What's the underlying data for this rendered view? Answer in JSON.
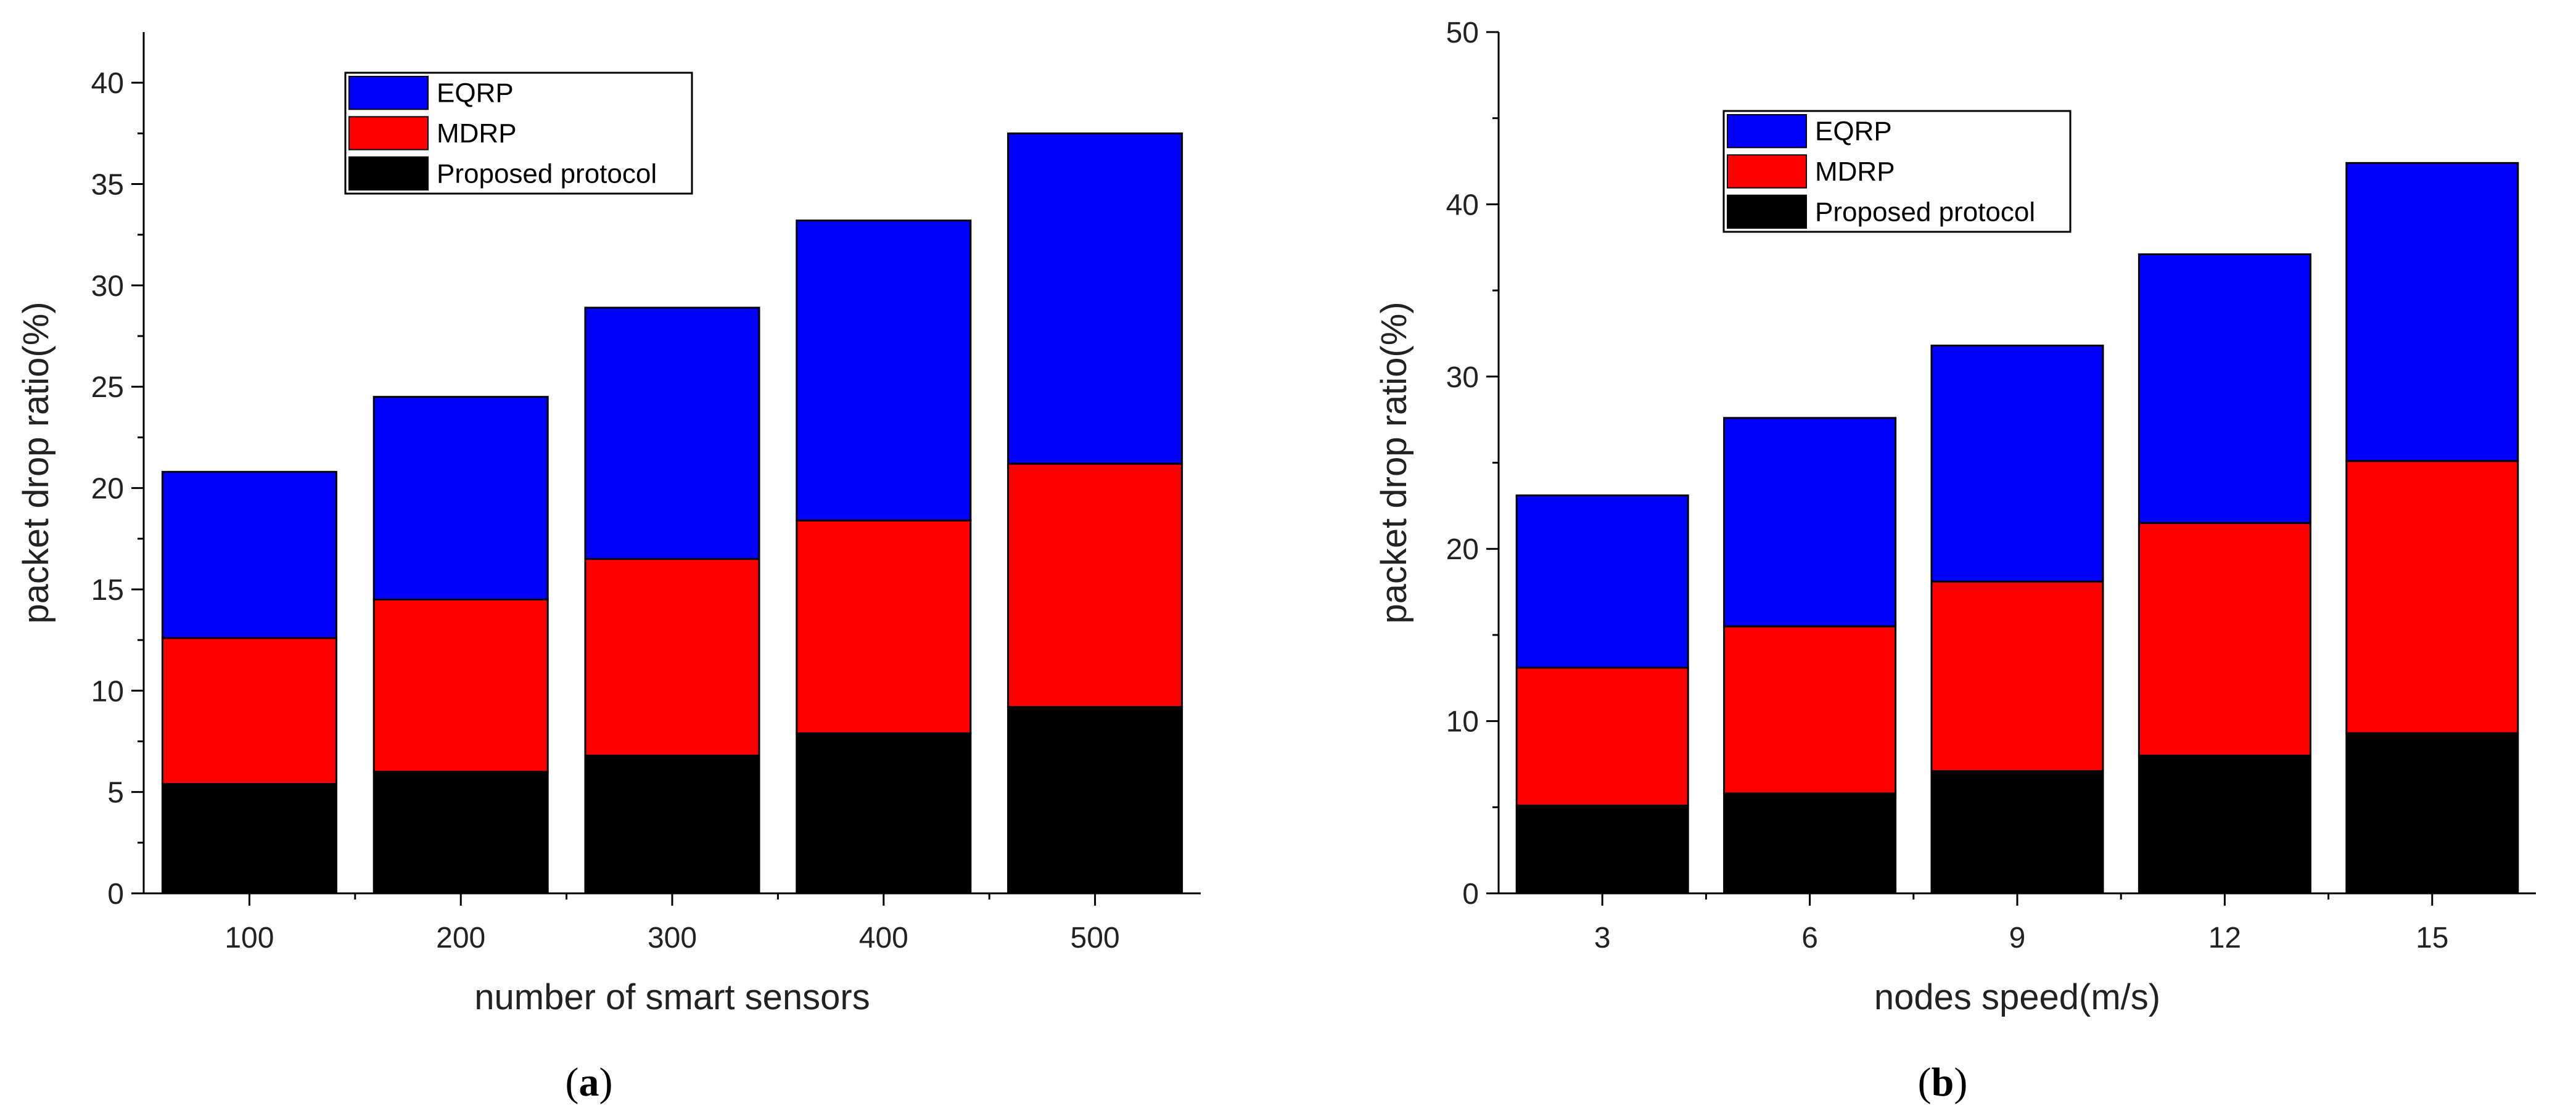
{
  "chart_data": [
    {
      "type": "bar",
      "stacked": true,
      "panel_label_letter": "a",
      "categories": [
        "100",
        "200",
        "300",
        "400",
        "500"
      ],
      "series": [
        {
          "name": "Proposed protocol",
          "color": "#000000",
          "values": [
            5.4,
            6.0,
            6.8,
            7.9,
            9.2
          ]
        },
        {
          "name": "MDRP",
          "color": "#ff0000",
          "values": [
            7.2,
            8.5,
            9.7,
            10.5,
            12.0
          ]
        },
        {
          "name": "EQRP",
          "color": "#0000ff",
          "values": [
            8.2,
            10.0,
            12.4,
            14.8,
            16.3
          ]
        }
      ],
      "xlabel": "number of smart sensors",
      "ylabel": "packet drop ratio(%)",
      "ylim": [
        0,
        42.5
      ],
      "yticks": [
        0,
        5,
        10,
        15,
        20,
        25,
        30,
        35,
        40
      ],
      "legend": [
        "EQRP",
        "MDRP",
        "Proposed protocol"
      ],
      "legend_position": "top-left"
    },
    {
      "type": "bar",
      "stacked": true,
      "panel_label_letter": "b",
      "categories": [
        "3",
        "6",
        "9",
        "12",
        "15"
      ],
      "series": [
        {
          "name": "Proposed protocol",
          "color": "#000000",
          "values": [
            5.1,
            5.8,
            7.1,
            8.0,
            9.3
          ]
        },
        {
          "name": "MDRP",
          "color": "#ff0000",
          "values": [
            8.0,
            9.7,
            11.0,
            13.5,
            15.8
          ]
        },
        {
          "name": "EQRP",
          "color": "#0000ff",
          "values": [
            10.0,
            12.1,
            13.7,
            15.6,
            17.3
          ]
        }
      ],
      "xlabel": "nodes speed(m/s)",
      "ylabel": "packet drop ratio(%)",
      "ylim": [
        0,
        50
      ],
      "yticks": [
        0,
        10,
        20,
        30,
        40,
        50
      ],
      "legend": [
        "EQRP",
        "MDRP",
        "Proposed protocol"
      ],
      "legend_position": "top-left"
    }
  ]
}
